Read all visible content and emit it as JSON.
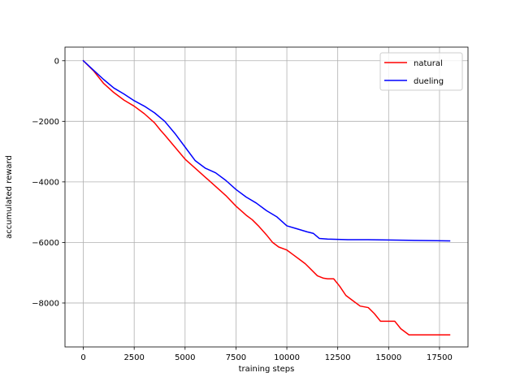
{
  "chart_data": {
    "type": "line",
    "title": "",
    "xlabel": "training steps",
    "ylabel": "accumulated reward",
    "xlim": [
      -900,
      18900
    ],
    "ylim": [
      -9450,
      450
    ],
    "xticks": [
      0,
      2500,
      5000,
      7500,
      10000,
      12500,
      15000,
      17500
    ],
    "yticks": [
      0,
      -2000,
      -4000,
      -6000,
      -8000
    ],
    "grid": true,
    "legend_position": "top-right",
    "series": [
      {
        "name": "natural",
        "color": "#ff0000",
        "x": [
          0,
          500,
          1000,
          1500,
          2000,
          2500,
          3000,
          3500,
          3800,
          4000,
          4500,
          5000,
          5500,
          6000,
          6500,
          7000,
          7500,
          8000,
          8300,
          8600,
          9000,
          9300,
          9600,
          10000,
          10300,
          10600,
          10900,
          11200,
          11500,
          11800,
          12000,
          12300,
          12600,
          12900,
          13200,
          13600,
          14000,
          14300,
          14600,
          14900,
          15300,
          15600,
          16000,
          16500,
          17000,
          17500,
          18000
        ],
        "values": [
          0,
          -330,
          -750,
          -1050,
          -1300,
          -1500,
          -1750,
          -2050,
          -2300,
          -2450,
          -2850,
          -3250,
          -3550,
          -3850,
          -4150,
          -4450,
          -4800,
          -5100,
          -5250,
          -5450,
          -5750,
          -6000,
          -6150,
          -6250,
          -6400,
          -6550,
          -6700,
          -6900,
          -7100,
          -7180,
          -7200,
          -7200,
          -7450,
          -7750,
          -7900,
          -8100,
          -8150,
          -8350,
          -8600,
          -8600,
          -8600,
          -8850,
          -9050,
          -9050,
          -9050,
          -9050,
          -9050
        ]
      },
      {
        "name": "dueling",
        "color": "#0000ff",
        "x": [
          0,
          400,
          1000,
          1500,
          2000,
          2500,
          3000,
          3500,
          4000,
          4500,
          5000,
          5500,
          6000,
          6500,
          7000,
          7500,
          8000,
          8500,
          9000,
          9500,
          10000,
          10500,
          11000,
          11300,
          11600,
          12000,
          12500,
          13000,
          14000,
          15000,
          16000,
          17000,
          18000
        ],
        "values": [
          0,
          -250,
          -620,
          -900,
          -1100,
          -1320,
          -1500,
          -1720,
          -2000,
          -2400,
          -2850,
          -3300,
          -3550,
          -3700,
          -3950,
          -4250,
          -4500,
          -4700,
          -4950,
          -5150,
          -5450,
          -5550,
          -5650,
          -5700,
          -5870,
          -5890,
          -5900,
          -5910,
          -5910,
          -5920,
          -5930,
          -5940,
          -5950
        ]
      }
    ]
  }
}
